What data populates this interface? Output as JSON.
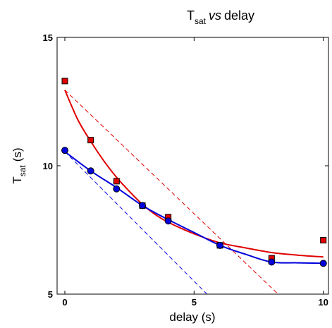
{
  "chart_data": {
    "type": "scatter",
    "title": {
      "prefix": "T",
      "subscript": "sat",
      "italic": "vs",
      "suffix": "delay"
    },
    "xlabel": "delay (s)",
    "ylabel": {
      "main": "T",
      "subscript": "sat",
      "unit": "(s)"
    },
    "xlim": [
      -0.3,
      10.2
    ],
    "ylim": [
      5,
      15
    ],
    "xticks": [
      0,
      5,
      10
    ],
    "yticks": [
      5,
      10,
      15
    ],
    "grid": false,
    "legend": "none",
    "series": [
      {
        "marker": "square",
        "color": "#e00000",
        "points": [
          {
            "x": 0,
            "y": 13.3
          },
          {
            "x": 1,
            "y": 11.0
          },
          {
            "x": 2,
            "y": 9.4
          },
          {
            "x": 3,
            "y": 8.45
          },
          {
            "x": 4,
            "y": 8.0
          },
          {
            "x": 6,
            "y": 6.9
          },
          {
            "x": 8,
            "y": 6.4
          },
          {
            "x": 10,
            "y": 7.1
          }
        ],
        "fit": [
          {
            "x": 0,
            "y": 12.95
          },
          {
            "x": 0.5,
            "y": 11.8
          },
          {
            "x": 1,
            "y": 10.95
          },
          {
            "x": 1.5,
            "y": 10.2
          },
          {
            "x": 2,
            "y": 9.55
          },
          {
            "x": 2.5,
            "y": 9.0
          },
          {
            "x": 3,
            "y": 8.5
          },
          {
            "x": 3.5,
            "y": 8.1
          },
          {
            "x": 4,
            "y": 7.8
          },
          {
            "x": 5,
            "y": 7.35
          },
          {
            "x": 6,
            "y": 7.0
          },
          {
            "x": 7,
            "y": 6.8
          },
          {
            "x": 8,
            "y": 6.62
          },
          {
            "x": 9,
            "y": 6.52
          },
          {
            "x": 10,
            "y": 6.45
          }
        ],
        "tangent": [
          {
            "x": 0,
            "y": 12.95
          },
          {
            "x": 8.25,
            "y": 5.0
          }
        ]
      },
      {
        "marker": "circle",
        "color": "#0000dd",
        "points": [
          {
            "x": 0,
            "y": 10.6
          },
          {
            "x": 1,
            "y": 9.8
          },
          {
            "x": 2,
            "y": 9.1
          },
          {
            "x": 3,
            "y": 8.45
          },
          {
            "x": 4,
            "y": 7.85
          },
          {
            "x": 6,
            "y": 6.9
          },
          {
            "x": 8,
            "y": 6.25
          },
          {
            "x": 10,
            "y": 6.2
          }
        ],
        "fit": [
          {
            "x": 0,
            "y": 10.55
          },
          {
            "x": 1,
            "y": 9.8
          },
          {
            "x": 2,
            "y": 9.15
          },
          {
            "x": 3,
            "y": 8.45
          },
          {
            "x": 4,
            "y": 7.9
          },
          {
            "x": 5,
            "y": 7.4
          },
          {
            "x": 6,
            "y": 6.9
          },
          {
            "x": 7,
            "y": 6.55
          },
          {
            "x": 8,
            "y": 6.25
          },
          {
            "x": 9,
            "y": 6.22
          },
          {
            "x": 10,
            "y": 6.2
          }
        ],
        "tangent": [
          {
            "x": 0,
            "y": 10.55
          },
          {
            "x": 5.5,
            "y": 5.0
          }
        ]
      }
    ]
  }
}
